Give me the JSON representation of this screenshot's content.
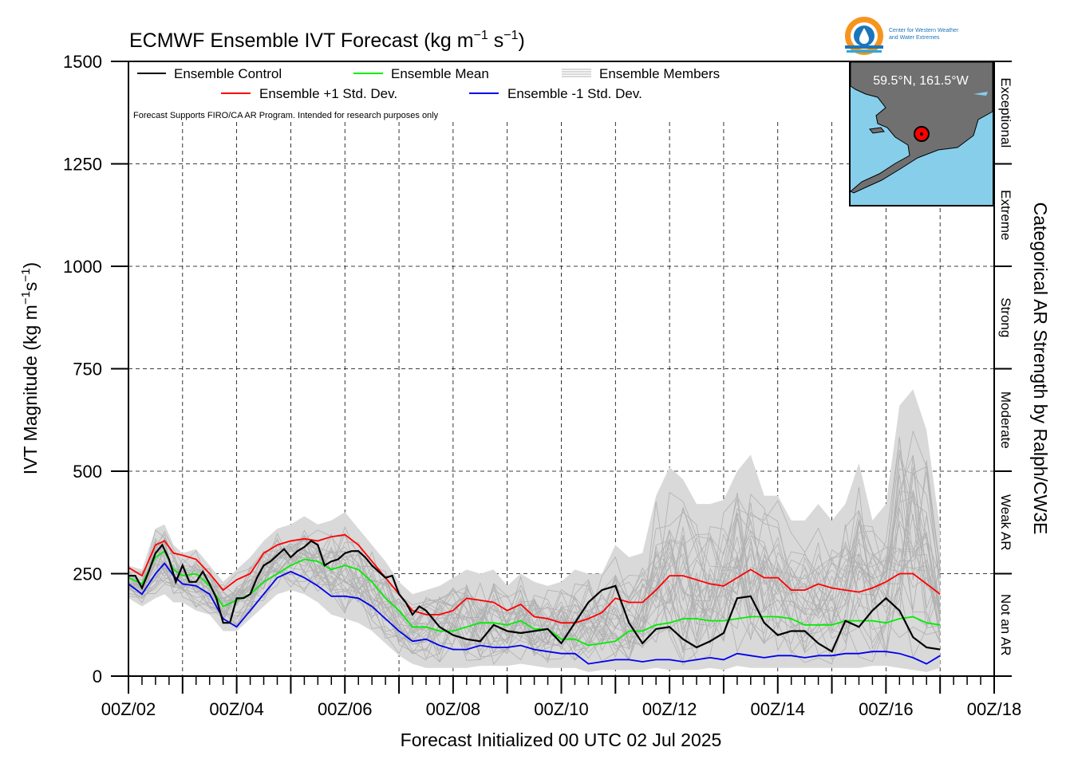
{
  "chart_data": {
    "type": "line",
    "title": "ECMWF Ensemble IVT Forecast (kg m",
    "title_unit_exp1": "−1",
    "title_mid": " s",
    "title_unit_exp2": "−1",
    "title_end": ")",
    "ylabel": "IVT Magnitude (kg m",
    "ylabel_exp1": "−1",
    "ylabel_mid": "s",
    "ylabel_exp2": "−1",
    "ylabel_end": ")",
    "xlabel": "Forecast Initialized 00 UTC 02 Jul 2025",
    "right_axis_label": "Categorical AR Strength by Ralph/CW3E",
    "note": "Forecast Supports FIRO/CA AR Program. Intended for research purposes only",
    "location_label": "59.5°N, 161.5°W",
    "logo_text_line1": "Center for Western Weather",
    "logo_text_line2": "and Water Extremes",
    "ylim": [
      0,
      1500
    ],
    "xlim": [
      0,
      384
    ],
    "y_ticks": [
      0,
      250,
      500,
      750,
      1000,
      1250,
      1500
    ],
    "y_tick_labels": [
      "0",
      "250",
      "500",
      "750",
      "1000",
      "1250",
      "1500"
    ],
    "x_tick_hours": [
      0,
      48,
      96,
      144,
      192,
      240,
      288,
      336,
      384
    ],
    "x_tick_labels": [
      "00Z/02",
      "00Z/04",
      "00Z/06",
      "00Z/08",
      "00Z/10",
      "00Z/12",
      "00Z/14",
      "00Z/16",
      "00Z/18"
    ],
    "categories_ar": [
      {
        "label": "Not an AR",
        "from": 0,
        "to": 250
      },
      {
        "label": "Weak AR",
        "from": 250,
        "to": 500
      },
      {
        "label": "Moderate",
        "from": 500,
        "to": 750
      },
      {
        "label": "Strong",
        "from": 750,
        "to": 1000
      },
      {
        "label": "Extreme",
        "from": 1000,
        "to": 1250
      },
      {
        "label": "Exceptional",
        "from": 1250,
        "to": 1500
      }
    ],
    "legend": [
      {
        "name": "Ensemble Control",
        "color": "#000000"
      },
      {
        "name": "Ensemble Mean",
        "color": "#00ee00"
      },
      {
        "name": "Ensemble Members",
        "color": "#b0b0b0"
      },
      {
        "name": "Ensemble +1 Std. Dev.",
        "color": "#ff0000"
      },
      {
        "name": "Ensemble -1 Std. Dev.",
        "color": "#0000ee"
      }
    ],
    "series": [
      {
        "name": "Ensemble Control",
        "color": "#000000",
        "x": [
          0,
          3,
          6,
          9,
          12,
          15,
          18,
          21,
          24,
          27,
          30,
          33,
          36,
          39,
          42,
          45,
          48,
          51,
          54,
          57,
          60,
          63,
          66,
          69,
          72,
          75,
          78,
          81,
          84,
          87,
          90,
          93,
          96,
          99,
          102,
          105,
          108,
          111,
          114,
          117,
          120,
          123,
          126,
          129,
          132,
          135,
          138,
          144,
          150,
          156,
          162,
          168,
          174,
          180,
          186,
          192,
          198,
          204,
          210,
          216,
          222,
          228,
          234,
          240,
          246,
          252,
          258,
          264,
          270,
          276,
          282,
          288,
          294,
          300,
          306,
          312,
          318,
          324,
          330,
          336,
          342,
          348,
          354,
          360
        ],
        "values": [
          245,
          245,
          215,
          255,
          300,
          320,
          285,
          230,
          270,
          230,
          230,
          255,
          225,
          190,
          130,
          130,
          190,
          190,
          200,
          240,
          270,
          280,
          295,
          310,
          290,
          305,
          315,
          330,
          320,
          270,
          280,
          285,
          300,
          305,
          305,
          290,
          270,
          255,
          240,
          245,
          200,
          180,
          150,
          170,
          160,
          140,
          120,
          100,
          90,
          85,
          125,
          110,
          105,
          110,
          115,
          80,
          130,
          180,
          210,
          220,
          130,
          80,
          115,
          120,
          90,
          70,
          85,
          105,
          190,
          195,
          130,
          100,
          110,
          110,
          80,
          60,
          135,
          120,
          160,
          190,
          160,
          95,
          70,
          65
        ]
      },
      {
        "name": "Ensemble Mean",
        "color": "#00ee00",
        "x": [
          0,
          6,
          12,
          16,
          20,
          24,
          30,
          36,
          42,
          48,
          54,
          60,
          66,
          72,
          78,
          84,
          90,
          96,
          102,
          108,
          114,
          120,
          126,
          132,
          138,
          144,
          150,
          156,
          162,
          168,
          174,
          180,
          186,
          192,
          198,
          204,
          210,
          216,
          222,
          228,
          234,
          240,
          246,
          252,
          258,
          264,
          270,
          276,
          282,
          288,
          294,
          300,
          306,
          312,
          318,
          324,
          330,
          336,
          342,
          348,
          354,
          360
        ],
        "values": [
          240,
          225,
          290,
          305,
          260,
          245,
          250,
          220,
          170,
          185,
          200,
          230,
          250,
          270,
          285,
          280,
          260,
          270,
          260,
          230,
          190,
          160,
          120,
          120,
          110,
          110,
          120,
          130,
          130,
          125,
          135,
          115,
          115,
          90,
          90,
          75,
          80,
          85,
          110,
          110,
          125,
          130,
          140,
          140,
          135,
          135,
          140,
          145,
          145,
          145,
          140,
          125,
          125,
          125,
          135,
          135,
          135,
          130,
          140,
          145,
          130,
          125
        ]
      },
      {
        "name": "Ensemble +1 Std. Dev.",
        "color": "#ff0000",
        "x": [
          0,
          6,
          12,
          16,
          20,
          24,
          30,
          36,
          42,
          48,
          54,
          60,
          66,
          72,
          78,
          84,
          90,
          96,
          102,
          108,
          114,
          120,
          126,
          132,
          138,
          144,
          150,
          156,
          162,
          168,
          174,
          180,
          186,
          192,
          198,
          204,
          210,
          216,
          222,
          228,
          234,
          240,
          246,
          252,
          258,
          264,
          270,
          276,
          282,
          288,
          294,
          300,
          306,
          312,
          318,
          324,
          330,
          336,
          342,
          348,
          354,
          360
        ],
        "values": [
          265,
          245,
          320,
          330,
          300,
          295,
          285,
          250,
          210,
          235,
          250,
          300,
          320,
          330,
          335,
          330,
          340,
          345,
          320,
          280,
          240,
          200,
          160,
          150,
          150,
          160,
          190,
          185,
          180,
          160,
          175,
          145,
          140,
          130,
          130,
          140,
          155,
          190,
          180,
          180,
          210,
          245,
          245,
          235,
          225,
          220,
          240,
          260,
          240,
          240,
          210,
          210,
          225,
          215,
          210,
          205,
          215,
          230,
          250,
          250,
          225,
          200
        ]
      },
      {
        "name": "Ensemble -1 Std. Dev.",
        "color": "#0000ee",
        "x": [
          0,
          6,
          12,
          16,
          20,
          24,
          30,
          36,
          42,
          48,
          54,
          60,
          66,
          72,
          78,
          84,
          90,
          96,
          102,
          108,
          114,
          120,
          126,
          132,
          138,
          144,
          150,
          156,
          162,
          168,
          174,
          180,
          186,
          192,
          198,
          204,
          210,
          216,
          222,
          228,
          234,
          240,
          246,
          252,
          258,
          264,
          270,
          276,
          282,
          288,
          294,
          300,
          306,
          312,
          318,
          324,
          330,
          336,
          342,
          348,
          354,
          360
        ],
        "values": [
          225,
          200,
          250,
          275,
          245,
          225,
          220,
          200,
          140,
          120,
          160,
          200,
          240,
          255,
          240,
          220,
          195,
          195,
          190,
          170,
          140,
          110,
          85,
          90,
          75,
          65,
          65,
          75,
          70,
          70,
          75,
          65,
          60,
          55,
          55,
          30,
          35,
          40,
          40,
          35,
          40,
          40,
          35,
          40,
          45,
          40,
          55,
          50,
          45,
          50,
          50,
          45,
          50,
          50,
          55,
          55,
          60,
          60,
          55,
          45,
          30,
          50
        ]
      }
    ],
    "members_envelope": {
      "x": [
        0,
        6,
        12,
        16,
        20,
        24,
        30,
        36,
        42,
        48,
        54,
        60,
        66,
        72,
        78,
        84,
        90,
        96,
        102,
        108,
        114,
        120,
        126,
        132,
        138,
        144,
        150,
        156,
        162,
        168,
        174,
        180,
        186,
        192,
        198,
        204,
        210,
        216,
        222,
        228,
        234,
        240,
        246,
        252,
        258,
        264,
        270,
        276,
        282,
        288,
        294,
        300,
        306,
        312,
        318,
        324,
        330,
        336,
        342,
        348,
        354,
        360
      ],
      "upper": [
        270,
        260,
        360,
        370,
        320,
        300,
        310,
        270,
        230,
        260,
        290,
        330,
        360,
        370,
        390,
        370,
        380,
        400,
        360,
        320,
        280,
        230,
        200,
        210,
        220,
        240,
        260,
        250,
        260,
        220,
        250,
        230,
        220,
        230,
        260,
        250,
        250,
        320,
        290,
        300,
        440,
        510,
        480,
        420,
        420,
        430,
        500,
        540,
        440,
        440,
        380,
        380,
        420,
        380,
        420,
        520,
        380,
        420,
        660,
        700,
        600,
        360
      ],
      "lower": [
        190,
        170,
        190,
        200,
        180,
        180,
        160,
        150,
        110,
        110,
        140,
        170,
        200,
        210,
        200,
        180,
        150,
        140,
        130,
        110,
        80,
        50,
        30,
        20,
        20,
        20,
        20,
        25,
        25,
        25,
        30,
        25,
        20,
        20,
        20,
        10,
        15,
        15,
        15,
        15,
        20,
        15,
        15,
        15,
        20,
        15,
        25,
        20,
        20,
        20,
        20,
        20,
        20,
        20,
        20,
        20,
        25,
        25,
        20,
        15,
        10,
        20
      ]
    },
    "grid": true,
    "legend_position": "top-left"
  }
}
